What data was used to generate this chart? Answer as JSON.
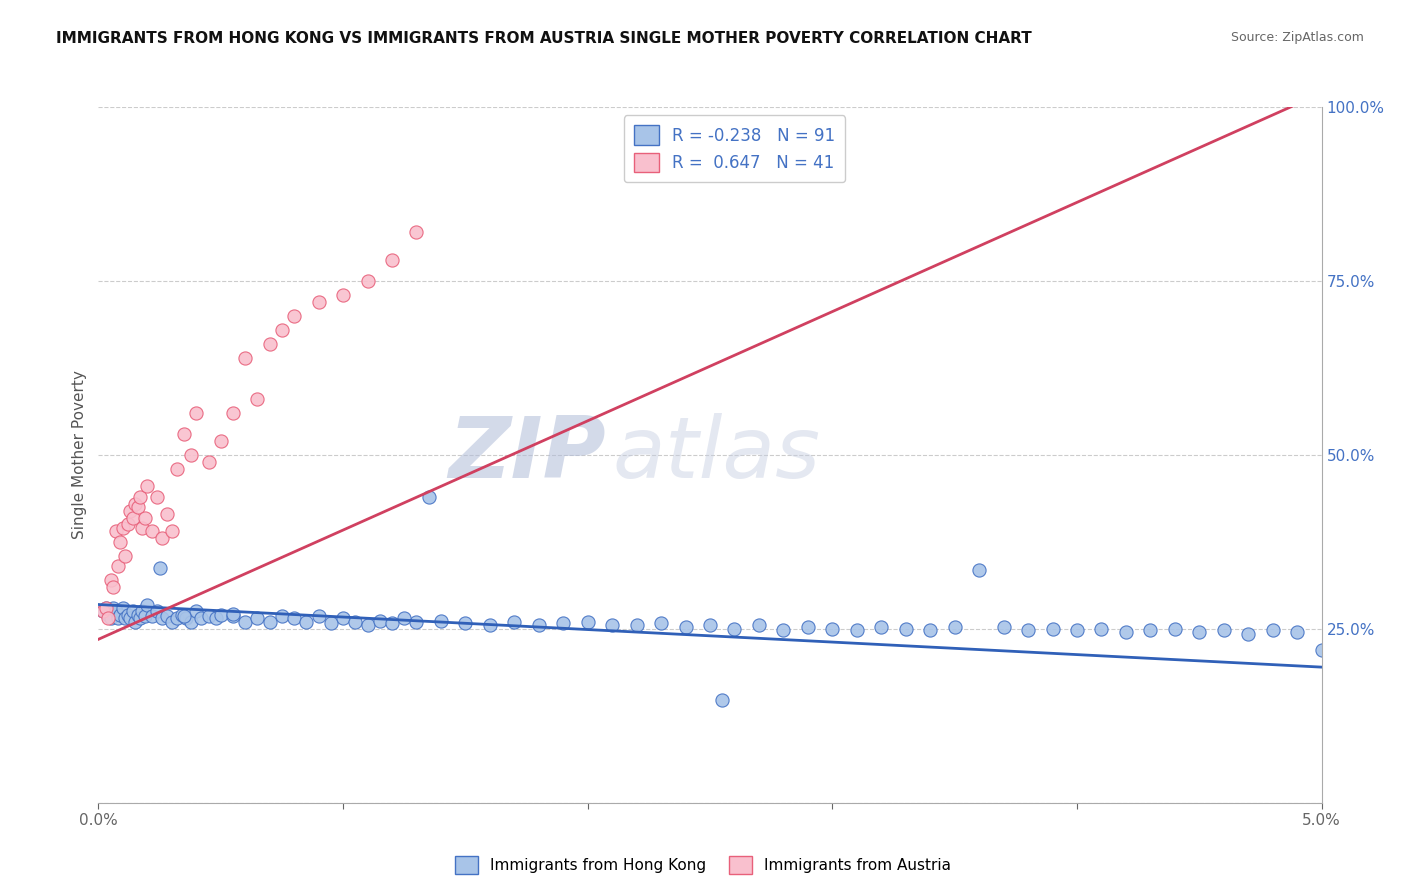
{
  "title": "IMMIGRANTS FROM HONG KONG VS IMMIGRANTS FROM AUSTRIA SINGLE MOTHER POVERTY CORRELATION CHART",
  "source": "Source: ZipAtlas.com",
  "ylabel": "Single Mother Poverty",
  "series1_label": "Immigrants from Hong Kong",
  "series2_label": "Immigrants from Austria",
  "color_hk_fill": "#a8c4e8",
  "color_hk_edge": "#4472c4",
  "color_austria_fill": "#f9c0ce",
  "color_austria_edge": "#e8607a",
  "color_hk_line": "#3060b8",
  "color_austria_line": "#d04060",
  "background_color": "#ffffff",
  "x_min": 0.0,
  "x_max": 5.0,
  "y_min": 0.0,
  "y_max": 1.0,
  "yticks": [
    0.0,
    0.25,
    0.5,
    0.75,
    1.0
  ],
  "ytick_labels": [
    "",
    "25.0%",
    "50.0%",
    "75.0%",
    "100.0%"
  ],
  "legend_line1": "R = -0.238   N = 91",
  "legend_line2": "R =  0.647   N = 41",
  "hk_trend_x0": 0.0,
  "hk_trend_y0": 0.285,
  "hk_trend_x1": 5.0,
  "hk_trend_y1": 0.195,
  "at_trend_x0": 0.0,
  "at_trend_y0": 0.235,
  "at_trend_x1": 5.0,
  "at_trend_y1": 1.02,
  "hk_x": [
    0.02,
    0.03,
    0.04,
    0.05,
    0.06,
    0.07,
    0.08,
    0.09,
    0.1,
    0.11,
    0.12,
    0.13,
    0.14,
    0.15,
    0.16,
    0.17,
    0.18,
    0.19,
    0.2,
    0.22,
    0.24,
    0.26,
    0.28,
    0.3,
    0.32,
    0.34,
    0.36,
    0.38,
    0.4,
    0.42,
    0.45,
    0.48,
    0.5,
    0.55,
    0.6,
    0.65,
    0.7,
    0.75,
    0.8,
    0.85,
    0.9,
    0.95,
    1.0,
    1.05,
    1.1,
    1.15,
    1.2,
    1.3,
    1.4,
    1.5,
    1.6,
    1.7,
    1.8,
    1.9,
    2.0,
    2.1,
    2.2,
    2.3,
    2.4,
    2.5,
    2.6,
    2.7,
    2.8,
    2.9,
    3.0,
    3.1,
    3.2,
    3.3,
    3.4,
    3.5,
    3.6,
    3.7,
    3.8,
    3.9,
    4.0,
    4.1,
    4.2,
    4.3,
    4.4,
    4.5,
    4.6,
    4.7,
    4.8,
    4.9,
    5.0,
    0.25,
    0.35,
    0.55,
    1.25,
    1.35,
    2.55
  ],
  "hk_y": [
    0.275,
    0.28,
    0.27,
    0.265,
    0.28,
    0.275,
    0.265,
    0.27,
    0.28,
    0.265,
    0.27,
    0.265,
    0.275,
    0.26,
    0.27,
    0.265,
    0.275,
    0.268,
    0.285,
    0.268,
    0.275,
    0.265,
    0.268,
    0.26,
    0.265,
    0.27,
    0.265,
    0.26,
    0.275,
    0.265,
    0.268,
    0.265,
    0.27,
    0.268,
    0.26,
    0.265,
    0.26,
    0.268,
    0.265,
    0.26,
    0.268,
    0.258,
    0.265,
    0.26,
    0.255,
    0.262,
    0.258,
    0.26,
    0.262,
    0.258,
    0.255,
    0.26,
    0.255,
    0.258,
    0.26,
    0.256,
    0.255,
    0.258,
    0.252,
    0.255,
    0.25,
    0.255,
    0.248,
    0.252,
    0.25,
    0.248,
    0.253,
    0.25,
    0.248,
    0.252,
    0.335,
    0.252,
    0.248,
    0.25,
    0.248,
    0.25,
    0.245,
    0.248,
    0.25,
    0.245,
    0.248,
    0.242,
    0.248,
    0.245,
    0.22,
    0.338,
    0.268,
    0.272,
    0.265,
    0.44,
    0.148
  ],
  "at_x": [
    0.02,
    0.03,
    0.04,
    0.05,
    0.06,
    0.07,
    0.08,
    0.09,
    0.1,
    0.11,
    0.12,
    0.13,
    0.14,
    0.15,
    0.16,
    0.17,
    0.18,
    0.19,
    0.2,
    0.22,
    0.24,
    0.26,
    0.28,
    0.3,
    0.32,
    0.35,
    0.38,
    0.4,
    0.45,
    0.5,
    0.55,
    0.6,
    0.65,
    0.7,
    0.75,
    0.8,
    0.9,
    1.0,
    1.1,
    1.2,
    1.3
  ],
  "at_y": [
    0.275,
    0.28,
    0.265,
    0.32,
    0.31,
    0.39,
    0.34,
    0.375,
    0.395,
    0.355,
    0.4,
    0.42,
    0.41,
    0.43,
    0.425,
    0.44,
    0.395,
    0.41,
    0.455,
    0.39,
    0.44,
    0.38,
    0.415,
    0.39,
    0.48,
    0.53,
    0.5,
    0.56,
    0.49,
    0.52,
    0.56,
    0.64,
    0.58,
    0.66,
    0.68,
    0.7,
    0.72,
    0.73,
    0.75,
    0.78,
    0.82
  ]
}
